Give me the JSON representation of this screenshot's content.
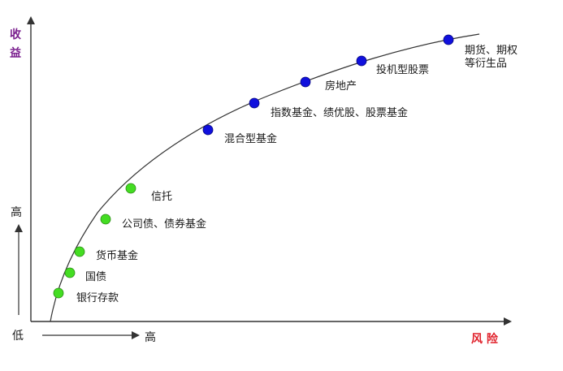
{
  "axes": {
    "y_title_line1": "收",
    "y_title_line2": "益",
    "y_high": "高",
    "origin_low": "低",
    "x_high": "高",
    "x_title": "风 险",
    "y_title_color": "#7a1f8e",
    "x_title_color": "#e0202a"
  },
  "curve": {
    "color": "#333333"
  },
  "point_colors": {
    "low_risk": "#44dd22",
    "high_risk": "#1010dd"
  },
  "points": [
    {
      "label": "银行存款",
      "tier": "low_risk"
    },
    {
      "label": "国债",
      "tier": "low_risk"
    },
    {
      "label": "货币基金",
      "tier": "low_risk"
    },
    {
      "label": "公司债、债券基金",
      "tier": "low_risk"
    },
    {
      "label": "信托",
      "tier": "low_risk"
    },
    {
      "label": "混合型基金",
      "tier": "high_risk"
    },
    {
      "label": "指数基金、绩优股、股票基金",
      "tier": "high_risk"
    },
    {
      "label": "房地产",
      "tier": "high_risk"
    },
    {
      "label": "投机型股票",
      "tier": "high_risk"
    },
    {
      "label": "期货、期权",
      "label_line2": "等衍生品",
      "tier": "high_risk"
    }
  ]
}
